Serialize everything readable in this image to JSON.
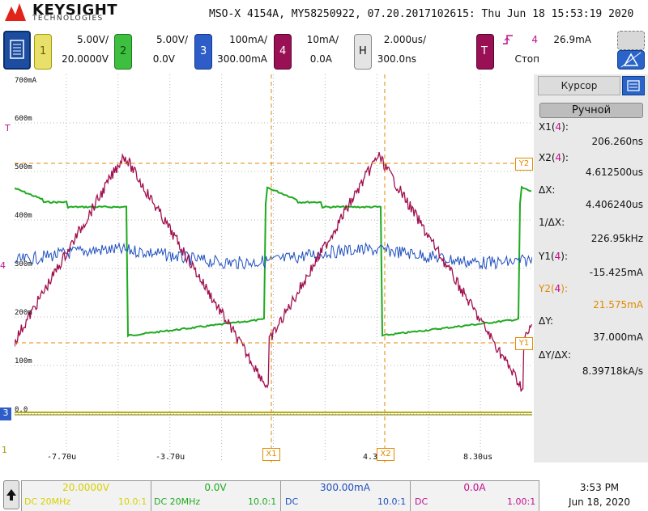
{
  "header": {
    "brand": "KEYSIGHT",
    "brand_sub": "TECHNOLOGIES",
    "info": "MSO-X 4154A, MY58250922, 07.20.2017102615: Thu Jun 18 15:53:19 2020"
  },
  "channels": [
    {
      "num": "1",
      "scale": "5.00V/",
      "offset": "20.0000V",
      "color": "#d8d000"
    },
    {
      "num": "2",
      "scale": "5.00V/",
      "offset": "0.0V",
      "color": "#1faa1f"
    },
    {
      "num": "3",
      "scale": "100mA/",
      "offset": "300.00mA",
      "color": "#1f4fbf"
    },
    {
      "num": "4",
      "scale": "10mA/",
      "offset": "0.0A",
      "color": "#b0105a"
    }
  ],
  "horizontal": {
    "key": "H",
    "scale": "2.000us/",
    "delay": "300.0ns"
  },
  "trigger": {
    "key": "T",
    "channel": "4",
    "level": "26.9mA",
    "state": "Стоп"
  },
  "grid": {
    "y_labels": [
      "700mA",
      "600m",
      "500m",
      "400m",
      "300m",
      "200m",
      "100m",
      "0.0"
    ],
    "x_labels": [
      "-7.70u",
      "-3.70u",
      "4.3",
      "8.30us"
    ],
    "cursor_labels": {
      "x1": "X1",
      "x2": "X2",
      "y1": "Y1",
      "y2": "Y2"
    },
    "marker_t": "T",
    "marker_4": "4",
    "marker_3": "3",
    "marker_1": "1"
  },
  "panel": {
    "tab": "Курсор",
    "mode": "Ручной",
    "x1_label": "X1(4):",
    "x1": "206.260ns",
    "x2_label": "X2(4):",
    "x2": "4.612500us",
    "dx_label": "ΔX:",
    "dx": "4.406240us",
    "inv_dx_label": "1/ΔX:",
    "inv_dx": "226.95kHz",
    "y1_label": "Y1(4):",
    "y1": "-15.425mA",
    "y2_label": "Y2(4):",
    "y2": "21.575mA",
    "dy_label": "ΔY:",
    "dy": "37.000mA",
    "dydx_label": "ΔY/ΔX:",
    "dydx": "8.39718kA/s"
  },
  "footer": {
    "ch1_val": "20.0000V",
    "ch1_cpl": "DC 20MHz",
    "ch1_probe": "10.0:1",
    "ch2_val": "0.0V",
    "ch2_cpl": "DC 20MHz",
    "ch2_probe": "10.0:1",
    "ch3_val": "300.00mA",
    "ch3_cpl": "DC",
    "ch3_probe": "10.0:1",
    "ch4_val": "0.0A",
    "ch4_cpl": "DC",
    "ch4_probe": "1.00:1",
    "time": "3:53 PM",
    "date": "Jun 18, 2020"
  }
}
